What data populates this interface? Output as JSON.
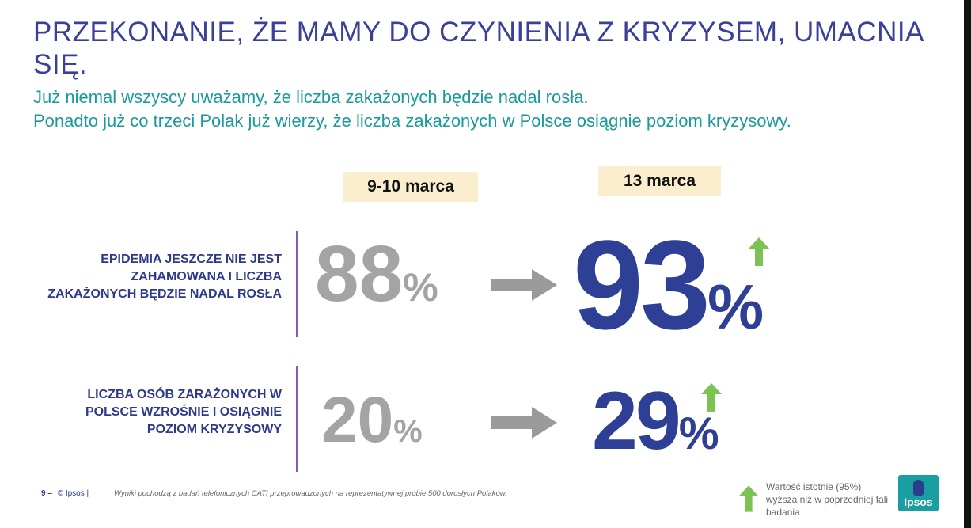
{
  "title": "PRZEKONANIE, ŻE MAMY DO CZYNIENIA Z KRYZYSEM, UMACNIA SIĘ.",
  "subtitle": {
    "line1": "Już niemal wszyscy uważamy, że liczba zakażonych będzie nadal rosła.",
    "line2": "Ponadto już co trzeci Polak już wierzy, że liczba zakażonych w Polsce osiągnie poziom kryzysowy."
  },
  "dates": {
    "before": "9-10 marca",
    "after": "13 marca"
  },
  "rows": [
    {
      "label": "EPIDEMIA JESZCZE NIE JEST ZAHAMOWANA I LICZBA ZAKAŻONYCH BĘDZIE NADAL ROSŁA",
      "before_value": "88",
      "after_value": "93",
      "percent_sign": "%"
    },
    {
      "label": "LICZBA OSÓB ZARAŻONYCH W POLSCE WZROŚNIE I OSIĄGNIE POZIOM KRYZYSOWY",
      "before_value": "20",
      "after_value": "29",
      "percent_sign": "%"
    }
  ],
  "footer": {
    "page_number": "9",
    "dash": "–",
    "copyright": "© Ipsos |",
    "note": "Wyniki pochodzą z badań telefonicznych CATI przeprowadzonych na reprezentatywnej próbie 500 dorosłych Polaków."
  },
  "legend": {
    "text": "Wartość istotnie (95%) wyższa niż w poprzedniej fali badania",
    "icon": "green-up-arrow-icon"
  },
  "logo": {
    "text": "Ipsos"
  },
  "colors": {
    "title": "#3a3f9a",
    "subtitle": "#1a9a9a",
    "label": "#2d3a8c",
    "old_value": "#a4a4a4",
    "new_value": "#2e3f96",
    "up_arrow": "#7dc354",
    "date_box": "#faeecf",
    "logo": "#1b9e9f"
  }
}
